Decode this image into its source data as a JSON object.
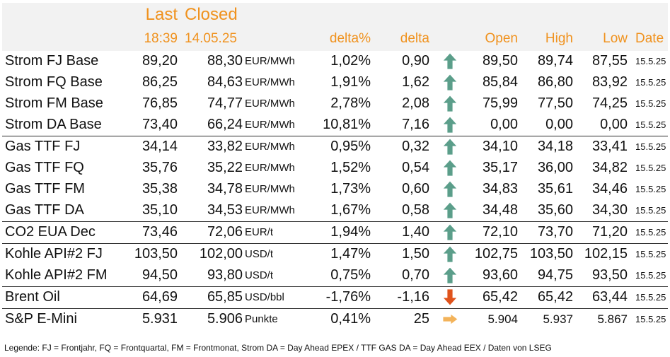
{
  "header": {
    "last_label": "Last",
    "closed_label": "Closed",
    "last_time": "18:39",
    "closed_date": "14.05.25",
    "delta_pct_label": "delta%",
    "delta_label": "delta",
    "open_label": "Open",
    "high_label": "High",
    "low_label": "Low",
    "date_label": "Date"
  },
  "colors": {
    "header_text": "#f0921e",
    "up_arrow": "#5b9e8a",
    "down_arrow": "#e0531c",
    "flat_arrow": "#f3b35a"
  },
  "rows": [
    {
      "name": "Strom FJ Base",
      "last": "89,20",
      "closed": "88,30",
      "unit": "EUR/MWh",
      "pct": "1,02%",
      "delta": "0,90",
      "trend": "up",
      "open": "89,50",
      "high": "89,74",
      "low": "87,55",
      "date": "15.5.25"
    },
    {
      "name": "Strom FQ Base",
      "last": "86,25",
      "closed": "84,63",
      "unit": "EUR/MWh",
      "pct": "1,91%",
      "delta": "1,62",
      "trend": "up",
      "open": "85,84",
      "high": "86,80",
      "low": "83,92",
      "date": "15.5.25"
    },
    {
      "name": "Strom FM Base",
      "last": "76,85",
      "closed": "74,77",
      "unit": "EUR/MWh",
      "pct": "2,78%",
      "delta": "2,08",
      "trend": "up",
      "open": "75,99",
      "high": "77,50",
      "low": "74,25",
      "date": "15.5.25"
    },
    {
      "name": "Strom DA Base",
      "last": "73,40",
      "closed": "66,24",
      "unit": "EUR/MWh",
      "pct": "10,81%",
      "delta": "7,16",
      "trend": "up",
      "open": "0,00",
      "high": "0,00",
      "low": "0,00",
      "date": "15.5.25"
    },
    {
      "name": "Gas TTF FJ",
      "last": "34,14",
      "closed": "33,82",
      "unit": "EUR/MWh",
      "pct": "0,95%",
      "delta": "0,32",
      "trend": "up",
      "open": "34,10",
      "high": "34,18",
      "low": "33,41",
      "date": "15.5.25"
    },
    {
      "name": "Gas TTF FQ",
      "last": "35,76",
      "closed": "35,22",
      "unit": "EUR/MWh",
      "pct": "1,52%",
      "delta": "0,54",
      "trend": "up",
      "open": "35,17",
      "high": "36,00",
      "low": "34,82",
      "date": "15.5.25"
    },
    {
      "name": "Gas TTF FM",
      "last": "35,38",
      "closed": "34,78",
      "unit": "EUR/MWh",
      "pct": "1,73%",
      "delta": "0,60",
      "trend": "up",
      "open": "34,83",
      "high": "35,61",
      "low": "34,46",
      "date": "15.5.25"
    },
    {
      "name": "Gas TTF DA",
      "last": "35,10",
      "closed": "34,53",
      "unit": "EUR/MWh",
      "pct": "1,67%",
      "delta": "0,58",
      "trend": "up",
      "open": "34,48",
      "high": "35,60",
      "low": "34,30",
      "date": "15.5.25"
    },
    {
      "name": "CO2 EUA Dec",
      "last": "73,46",
      "closed": "72,06",
      "unit": "EUR/t",
      "pct": "1,94%",
      "delta": "1,40",
      "trend": "up",
      "open": "72,10",
      "high": "73,70",
      "low": "71,20",
      "date": "15.5.25"
    },
    {
      "name": "Kohle API#2 FJ",
      "last": "103,50",
      "closed": "102,00",
      "unit": "USD/t",
      "pct": "1,47%",
      "delta": "1,50",
      "trend": "up",
      "open": "102,75",
      "high": "103,50",
      "low": "102,15",
      "date": "15.5.25"
    },
    {
      "name": "Kohle API#2 FM",
      "last": "94,50",
      "closed": "93,80",
      "unit": "USD/t",
      "pct": "0,75%",
      "delta": "0,70",
      "trend": "up",
      "open": "93,60",
      "high": "94,75",
      "low": "93,50",
      "date": "15.5.25"
    },
    {
      "name": "Brent Oil",
      "last": "64,69",
      "closed": "65,85",
      "unit": "USD/bbl",
      "pct": "-1,76%",
      "delta": "-1,16",
      "trend": "down",
      "open": "65,42",
      "high": "65,42",
      "low": "63,44",
      "date": "15.5.25"
    },
    {
      "name": "S&P E-Mini",
      "last": "5.931",
      "closed": "5.906",
      "unit": "Punkte",
      "pct": "0,41%",
      "delta": "25",
      "trend": "flat",
      "open": "5.904",
      "high": "5.937",
      "low": "5.867",
      "date": "15.5.25"
    }
  ],
  "legend": "Legende: FJ = Frontjahr, FQ = Frontquartal, FM = Frontmonat, Strom DA = Day Ahead EPEX / TTF GAS DA = Day Ahead EEX / Daten von LSEG"
}
